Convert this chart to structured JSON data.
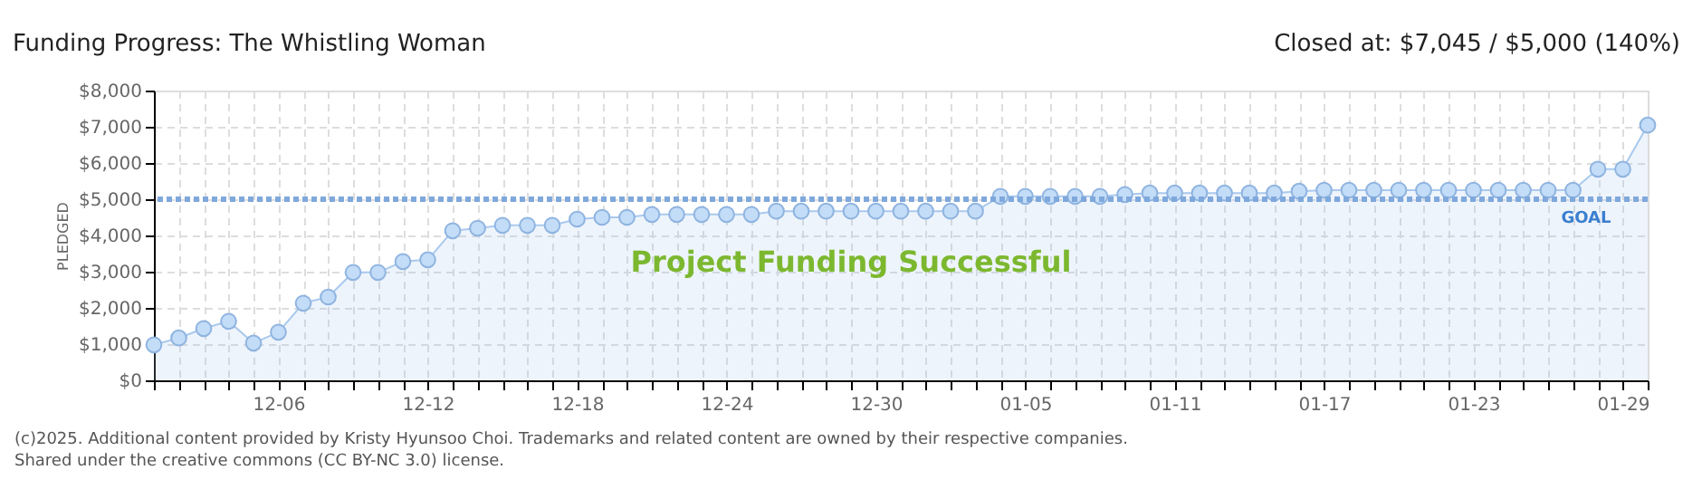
{
  "chart_data": {
    "type": "area",
    "title": "Funding Progress: The Whistling Woman",
    "subtitle": "Closed at: $7,045 / $5,000 (140%)",
    "ylabel": "PLEDGED",
    "categories": [
      null,
      null,
      null,
      null,
      null,
      "12-06",
      null,
      null,
      null,
      null,
      null,
      "12-12",
      null,
      null,
      null,
      null,
      null,
      "12-18",
      null,
      null,
      null,
      null,
      null,
      "12-24",
      null,
      null,
      null,
      null,
      null,
      "12-30",
      null,
      null,
      null,
      null,
      null,
      "01-05",
      null,
      null,
      null,
      null,
      null,
      "01-11",
      null,
      null,
      null,
      null,
      null,
      "01-17",
      null,
      null,
      null,
      null,
      null,
      "01-23",
      null,
      null,
      null,
      null,
      null,
      "01-29",
      null
    ],
    "series": [
      {
        "color": "#a9c9ee",
        "values": [
          980,
          1170,
          1430,
          1630,
          1030,
          1330,
          2130,
          2300,
          2980,
          2980,
          3280,
          3330,
          4130,
          4200,
          4280,
          4280,
          4280,
          4450,
          4500,
          4500,
          4580,
          4580,
          4580,
          4580,
          4580,
          4670,
          4670,
          4670,
          4670,
          4670,
          4670,
          4670,
          4670,
          4670,
          5080,
          5080,
          5080,
          5080,
          5080,
          5130,
          5170,
          5170,
          5170,
          5170,
          5170,
          5170,
          5220,
          5250,
          5250,
          5250,
          5250,
          5250,
          5250,
          5250,
          5250,
          5250,
          5250,
          5250,
          5830,
          5830,
          7045
        ]
      }
    ],
    "ylim": [
      0,
      8000
    ],
    "yticks": [
      {
        "value": 0,
        "label": "$0"
      },
      {
        "value": 1000,
        "label": "$1,000"
      },
      {
        "value": 2000,
        "label": "$2,000"
      },
      {
        "value": 3000,
        "label": "$3,000"
      },
      {
        "value": 4000,
        "label": "$4,000"
      },
      {
        "value": 5000,
        "label": "$5,000"
      },
      {
        "value": 6000,
        "label": "$6,000"
      },
      {
        "value": 7000,
        "label": "$7,000"
      },
      {
        "value": 8000,
        "label": "$8,000"
      }
    ],
    "ref_lines": [
      {
        "axis": "y",
        "value": 5000,
        "label": "GOAL",
        "color": "#7fa8dc",
        "line_style": "dotted"
      }
    ],
    "annotations": [
      "Project Funding Successful",
      "(c)2025. Additional content provided by Kristy Hyunsoo Choi. Trademarks and related content are owned by their respective companies.",
      "Shared under the creative commons (CC BY-NC 3.0) license."
    ],
    "grid": true,
    "marker": "circle",
    "line_style": "solid",
    "legend": false
  }
}
